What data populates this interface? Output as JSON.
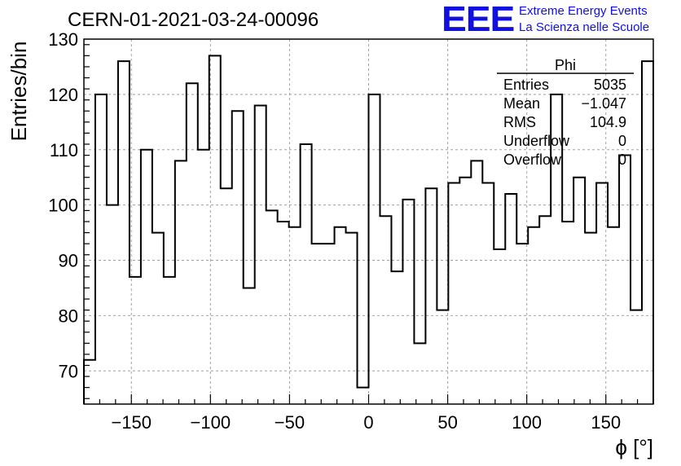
{
  "header": {
    "run_title": "CERN-01-2021-03-24-00096",
    "logo_text": "EEE",
    "org_line1": "Extreme Energy Events",
    "org_line2": "La Scienza nelle Scuole"
  },
  "stats_box": {
    "title": "Phi",
    "rows": [
      {
        "label": "Entries",
        "value": "5035"
      },
      {
        "label": "Mean",
        "value": "−1.047"
      },
      {
        "label": "RMS",
        "value": "104.9"
      },
      {
        "label": "Underflow",
        "value": "0"
      },
      {
        "label": "Overflow",
        "value": "0"
      }
    ]
  },
  "chart_data": {
    "type": "histogram",
    "xlabel": "ϕ [°]",
    "ylabel": "Entries/bin",
    "xlim": [
      -180,
      180
    ],
    "ylim": [
      64,
      130
    ],
    "grid": true,
    "bin_width": 7.2,
    "x_ticks": [
      -150,
      -100,
      -50,
      0,
      50,
      100,
      150
    ],
    "x_tick_labels": [
      "−150",
      "−100",
      "−50",
      "0",
      "50",
      "100",
      "150"
    ],
    "y_ticks": [
      70,
      80,
      90,
      100,
      110,
      120,
      130
    ],
    "y_tick_labels": [
      "70",
      "80",
      "90",
      "100",
      "110",
      "120",
      "130"
    ],
    "values": [
      72,
      120,
      100,
      126,
      87,
      110,
      95,
      87,
      108,
      122,
      110,
      127,
      103,
      117,
      85,
      118,
      99,
      97,
      96,
      111,
      93,
      93,
      96,
      95,
      67,
      120,
      98,
      88,
      101,
      75,
      103,
      81,
      104,
      105,
      108,
      104,
      92,
      102,
      93,
      96,
      98,
      120,
      97,
      105,
      95,
      104,
      96,
      109,
      81,
      126
    ]
  }
}
